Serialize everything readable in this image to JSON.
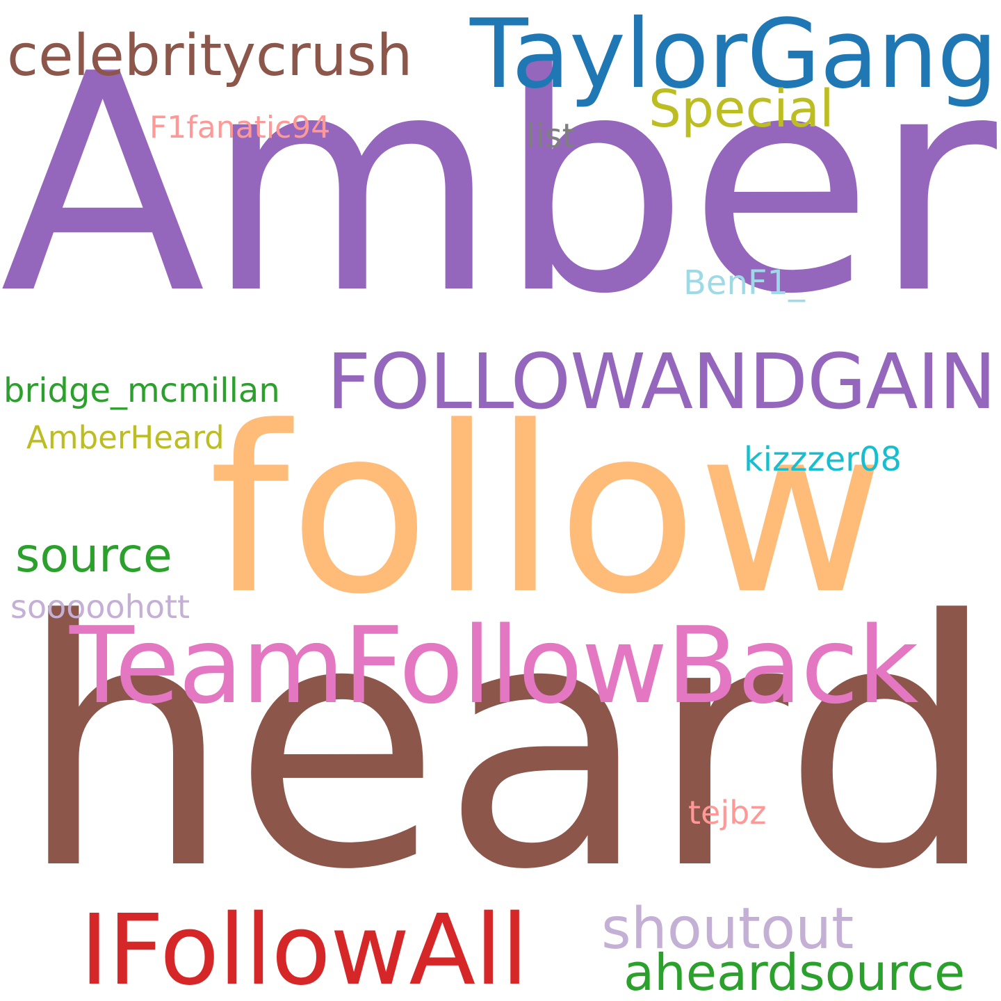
{
  "words": [
    {
      "id": "amber",
      "text": "Amber",
      "color": "#9467bd"
    },
    {
      "id": "heard",
      "text": "heard",
      "color": "#8c564b"
    },
    {
      "id": "follow",
      "text": "follow",
      "color": "#ffbb78"
    },
    {
      "id": "taylorgang",
      "text": "TaylorGang",
      "color": "#1f77b4"
    },
    {
      "id": "teamfb",
      "text": "TeamFollowBack",
      "color": "#e377c2"
    },
    {
      "id": "followgain",
      "text": "FOLLOWANDGAIN",
      "color": "#9467bd"
    },
    {
      "id": "ifollowall",
      "text": "IFollowAll",
      "color": "#d62728"
    },
    {
      "id": "celeb",
      "text": "celebritycrush",
      "color": "#8c564b"
    },
    {
      "id": "shoutout",
      "text": "shoutout",
      "color": "#c5b0d5"
    },
    {
      "id": "aheard",
      "text": "aheardsource",
      "color": "#2ca02c"
    },
    {
      "id": "source",
      "text": "source",
      "color": "#2ca02c"
    },
    {
      "id": "special",
      "text": "Special",
      "color": "#bcbd22"
    },
    {
      "id": "bridge",
      "text": "bridge_mcmillan",
      "color": "#2ca02c"
    },
    {
      "id": "amberheard",
      "text": "AmberHeard",
      "color": "#bcbd22"
    },
    {
      "id": "f1fan",
      "text": "F1fanatic94",
      "color": "#ff9896"
    },
    {
      "id": "list",
      "text": "list",
      "color": "#7f7f7f"
    },
    {
      "id": "benf1",
      "text": "BenF1_",
      "color": "#9edae5"
    },
    {
      "id": "kizzzer",
      "text": "kizzzer08",
      "color": "#17becf"
    },
    {
      "id": "sooooo",
      "text": "sooooohott",
      "color": "#c5b0d5"
    },
    {
      "id": "tejbz",
      "text": "tejbz",
      "color": "#ff9896"
    }
  ]
}
